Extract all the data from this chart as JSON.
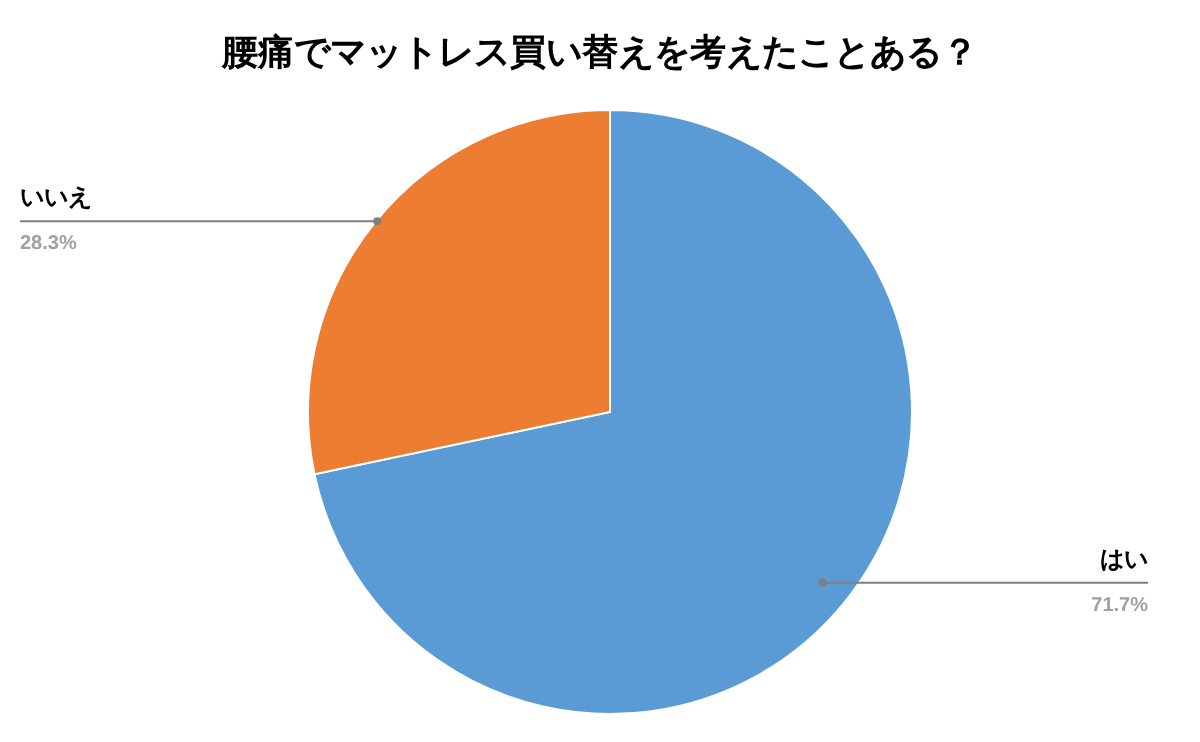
{
  "chart_data": {
    "type": "pie",
    "title": "腰痛でマットレス買い替えを考えたことある？",
    "categories": [
      "はい",
      "いいえ"
    ],
    "values": [
      71.7,
      28.3
    ],
    "colors": [
      "#5b9bd5",
      "#ed7d31"
    ],
    "value_labels": [
      "71.7%",
      "28.3%"
    ],
    "legend": false
  }
}
